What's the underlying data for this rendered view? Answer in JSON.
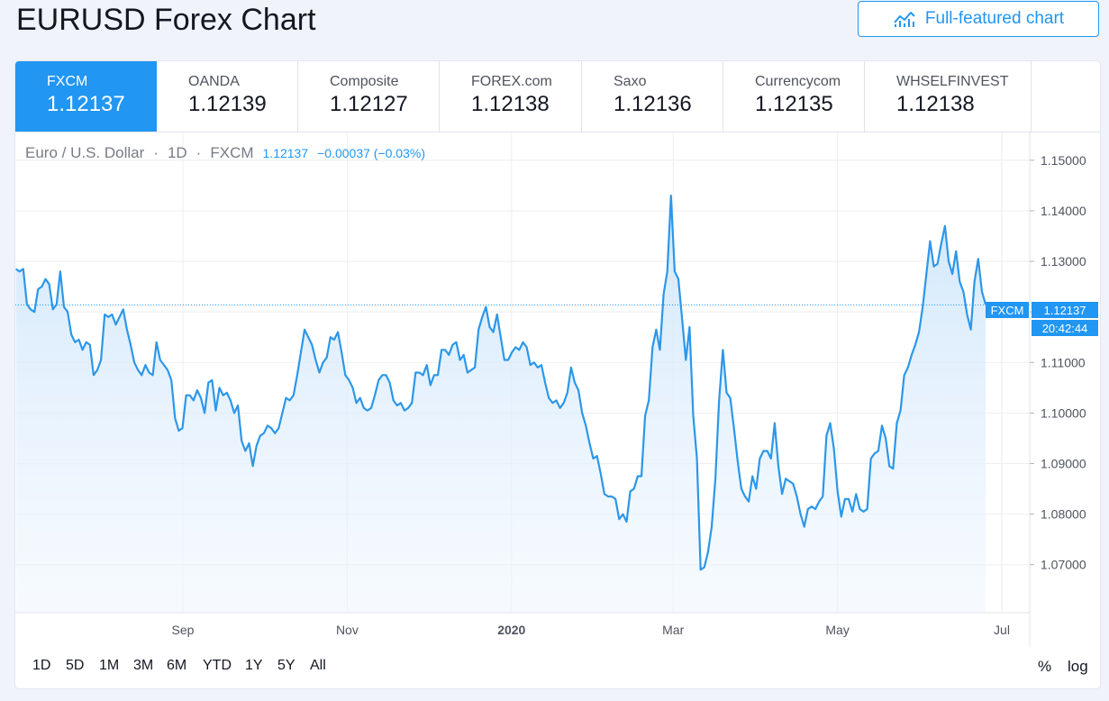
{
  "title": "EURUSD Forex Chart",
  "full_chart_button": "Full-featured chart",
  "tabs": [
    {
      "name": "FXCM",
      "value": "1.12137",
      "active": true
    },
    {
      "name": "OANDA",
      "value": "1.12139"
    },
    {
      "name": "Composite",
      "value": "1.12127"
    },
    {
      "name": "FOREX.com",
      "value": "1.12138"
    },
    {
      "name": "Saxo",
      "value": "1.12136"
    },
    {
      "name": "Currencycom",
      "value": "1.12135"
    },
    {
      "name": "WHSELFINVEST",
      "value": "1.12138"
    }
  ],
  "legend": {
    "symbol": "Euro / U.S. Dollar",
    "interval": "1D",
    "source": "FXCM",
    "last": "1.12137",
    "change": "−0.00037 (−0.03%)"
  },
  "price_tag": {
    "label": "FXCM",
    "value": "1.12137",
    "time": "20:42:44"
  },
  "ranges": [
    "1D",
    "5D",
    "1M",
    "3M",
    "6M",
    "YTD",
    "1Y",
    "5Y",
    "All"
  ],
  "options": {
    "percent": "%",
    "log": "log"
  },
  "colors": {
    "accent": "#2196f3",
    "line": "#2c97e8",
    "fill_top": "#cfe6fb"
  },
  "chart_data": {
    "type": "area",
    "title": "",
    "xlabel": "",
    "ylabel": "",
    "ylim": [
      1.0605,
      1.1555
    ],
    "y_ticks": [
      "1.15000",
      "1.14000",
      "1.13000",
      "1.12000",
      "1.11000",
      "1.10000",
      "1.09000",
      "1.08000",
      "1.07000"
    ],
    "x_ticks": [
      {
        "label": "Sep",
        "date": "2019-09-01",
        "bold": false
      },
      {
        "label": "Nov",
        "date": "2019-11-01",
        "bold": false
      },
      {
        "label": "2020",
        "date": "2020-01-01",
        "bold": true
      },
      {
        "label": "Mar",
        "date": "2020-03-01",
        "bold": false
      },
      {
        "label": "May",
        "date": "2020-05-01",
        "bold": false
      },
      {
        "label": "Jul",
        "date": "2020-07-01",
        "bold": false
      }
    ],
    "grid": true,
    "last_value": 1.12137,
    "series": [
      {
        "x_start": "2019-07-01",
        "x_end": "2020-06-25",
        "values": [
          1.1285,
          1.128,
          1.1285,
          1.1215,
          1.1205,
          1.12,
          1.1245,
          1.125,
          1.1265,
          1.1255,
          1.1205,
          1.1215,
          1.128,
          1.121,
          1.12,
          1.1155,
          1.114,
          1.1145,
          1.1125,
          1.114,
          1.1135,
          1.1075,
          1.1085,
          1.1105,
          1.1195,
          1.119,
          1.1195,
          1.1175,
          1.119,
          1.1205,
          1.1165,
          1.1135,
          1.11,
          1.1085,
          1.1075,
          1.1095,
          1.108,
          1.1075,
          1.114,
          1.1105,
          1.1095,
          1.1085,
          1.1065,
          1.099,
          1.0965,
          1.097,
          1.1035,
          1.1035,
          1.1025,
          1.1045,
          1.103,
          1.1,
          1.106,
          1.1065,
          1.1005,
          1.105,
          1.1035,
          1.104,
          1.1025,
          1.1,
          1.1015,
          1.0945,
          1.0925,
          1.094,
          1.0895,
          1.0935,
          1.0955,
          1.096,
          1.0975,
          1.097,
          1.096,
          1.097,
          1.1,
          1.103,
          1.1025,
          1.1035,
          1.1075,
          1.112,
          1.1165,
          1.115,
          1.1135,
          1.1105,
          1.108,
          1.11,
          1.111,
          1.115,
          1.1145,
          1.116,
          1.112,
          1.1075,
          1.1065,
          1.105,
          1.102,
          1.103,
          1.101,
          1.1005,
          1.101,
          1.1035,
          1.1065,
          1.1075,
          1.1075,
          1.106,
          1.1025,
          1.1015,
          1.102,
          1.1005,
          1.101,
          1.102,
          1.108,
          1.108,
          1.1075,
          1.1095,
          1.1055,
          1.1075,
          1.1075,
          1.1125,
          1.1125,
          1.1115,
          1.1135,
          1.114,
          1.1105,
          1.1115,
          1.108,
          1.1085,
          1.109,
          1.1165,
          1.119,
          1.121,
          1.117,
          1.116,
          1.1195,
          1.115,
          1.1105,
          1.1105,
          1.112,
          1.113,
          1.1125,
          1.114,
          1.113,
          1.1095,
          1.11,
          1.109,
          1.1095,
          1.106,
          1.103,
          1.102,
          1.1025,
          1.101,
          1.102,
          1.104,
          1.109,
          1.106,
          1.1045,
          1.1,
          1.0975,
          1.094,
          1.091,
          1.0915,
          1.088,
          1.084,
          1.0835,
          1.0835,
          1.083,
          1.079,
          1.08,
          1.0785,
          1.0845,
          1.085,
          1.0875,
          1.0875,
          1.0995,
          1.1025,
          1.113,
          1.1165,
          1.1125,
          1.1235,
          1.128,
          1.143,
          1.128,
          1.1265,
          1.1185,
          1.1105,
          1.117,
          1.0995,
          1.091,
          1.069,
          1.0695,
          1.0725,
          1.0775,
          1.087,
          1.1025,
          1.1125,
          1.104,
          1.103,
          1.097,
          1.0905,
          1.085,
          1.0835,
          1.0825,
          1.0875,
          1.085,
          1.091,
          1.0925,
          1.0925,
          1.091,
          1.098,
          1.0895,
          1.084,
          1.087,
          1.0865,
          1.086,
          1.0835,
          1.08,
          1.0775,
          1.081,
          1.0815,
          1.081,
          1.0825,
          1.0835,
          1.0955,
          1.098,
          1.093,
          1.0845,
          1.0795,
          1.083,
          1.083,
          1.0805,
          1.084,
          1.081,
          1.0805,
          1.081,
          1.091,
          1.092,
          1.0925,
          1.0975,
          1.095,
          1.0895,
          1.089,
          1.098,
          1.1005,
          1.1075,
          1.109,
          1.1115,
          1.1135,
          1.116,
          1.121,
          1.1275,
          1.134,
          1.129,
          1.1295,
          1.1335,
          1.137,
          1.13,
          1.1275,
          1.132,
          1.126,
          1.124,
          1.1195,
          1.1165,
          1.126,
          1.1305,
          1.124,
          1.1214
        ]
      }
    ]
  }
}
